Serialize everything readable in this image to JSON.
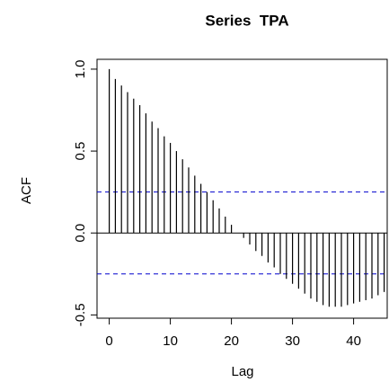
{
  "chart_data": {
    "type": "acf",
    "title": "Series  TPA",
    "x_label": "Lag",
    "y_label": "ACF",
    "x": [
      0,
      1,
      2,
      3,
      4,
      5,
      6,
      7,
      8,
      9,
      10,
      11,
      12,
      13,
      14,
      15,
      16,
      17,
      18,
      19,
      20,
      21,
      22,
      23,
      24,
      25,
      26,
      27,
      28,
      29,
      30,
      31,
      32,
      33,
      34,
      35,
      36,
      37,
      38,
      39,
      40,
      41,
      42,
      43,
      44,
      45
    ],
    "values": [
      1.0,
      0.94,
      0.9,
      0.86,
      0.82,
      0.78,
      0.73,
      0.68,
      0.64,
      0.59,
      0.55,
      0.5,
      0.45,
      0.4,
      0.35,
      0.3,
      0.25,
      0.2,
      0.15,
      0.1,
      0.05,
      0.0,
      -0.03,
      -0.07,
      -0.11,
      -0.14,
      -0.18,
      -0.21,
      -0.25,
      -0.28,
      -0.31,
      -0.34,
      -0.37,
      -0.4,
      -0.42,
      -0.44,
      -0.45,
      -0.45,
      -0.45,
      -0.44,
      -0.43,
      -0.42,
      -0.41,
      -0.4,
      -0.38,
      -0.36
    ],
    "color": "#000000",
    "confidence_bounds": [
      0.25,
      -0.25
    ],
    "bound_color": "#0000cd",
    "xlim": [
      -2,
      45.5
    ],
    "ylim": [
      -0.52,
      1.06
    ],
    "xticks": [
      0,
      10,
      20,
      30,
      40
    ],
    "yticks": [
      {
        "value": -0.5,
        "label": "-0.5"
      },
      {
        "value": 0,
        "label": "0.0"
      },
      0.5,
      {
        "value": 1,
        "label": "1.0"
      }
    ]
  }
}
